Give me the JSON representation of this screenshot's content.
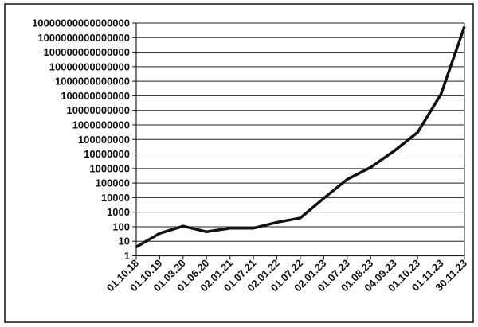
{
  "chart_data": {
    "type": "line",
    "title": "",
    "xlabel": "",
    "ylabel": "",
    "yscale": "log",
    "ylim": [
      1,
      10000000000000000
    ],
    "grid": true,
    "legend": "none",
    "line_color": "#111111",
    "y_ticks": [
      "1",
      "10",
      "100",
      "1000",
      "10000",
      "100000",
      "1000000",
      "10000000",
      "100000000",
      "1000000000",
      "10000000000",
      "100000000000",
      "1000000000000",
      "10000000000000",
      "100000000000000",
      "1000000000000000",
      "10000000000000000"
    ],
    "categories": [
      "01.10.18",
      "01.10.19",
      "01.03.20",
      "01.06.20",
      "02.01.21",
      "01.07.21",
      "02.01.22",
      "01.07.22",
      "02.01.23",
      "01.07.23",
      "01.08.23",
      "04.09.23",
      "01.10.23",
      "01.11.23",
      "30.11.23"
    ],
    "values": [
      4,
      35,
      110,
      45,
      80,
      80,
      200,
      400,
      9000,
      180000,
      1200000,
      16000000,
      300000000,
      130000000000,
      5700000000000000
    ]
  }
}
